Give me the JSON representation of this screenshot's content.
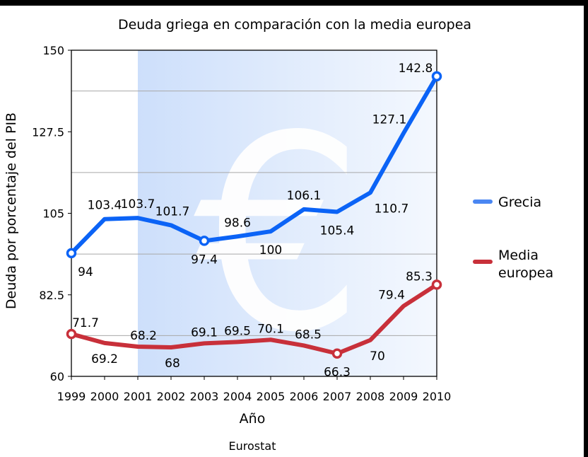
{
  "chart_data": {
    "type": "line",
    "title": "Deuda griega en comparación con la media europea",
    "xlabel": "Año",
    "ylabel": "Deuda por porcentaje del PIB",
    "source": "Eurostat",
    "x": [
      "1999",
      "2000",
      "2001",
      "2002",
      "2003",
      "2004",
      "2005",
      "2006",
      "2007",
      "2008",
      "2009",
      "2010"
    ],
    "ylim": [
      60,
      150
    ],
    "yticks": [
      "60",
      "82.5",
      "105",
      "127.5",
      "150"
    ],
    "series": [
      {
        "name": "Grecia",
        "color": "#0b63f6",
        "legend_color": "#4a86f2",
        "values": [
          94,
          103.4,
          103.7,
          101.7,
          97.4,
          98.6,
          100,
          106.1,
          105.4,
          110.7,
          127.1,
          142.8
        ],
        "labels": [
          "94",
          "103.4",
          "103.7",
          "101.7",
          "97.4",
          "98.6",
          "100",
          "106.1",
          "105.4",
          "110.7",
          "127.1",
          "142.8"
        ]
      },
      {
        "name": "Media europea",
        "name_lines": [
          "Media",
          "europea"
        ],
        "color": "#c8303a",
        "legend_color": "#c8303a",
        "values": [
          71.7,
          69.2,
          68.2,
          68,
          69.1,
          69.5,
          70.1,
          68.5,
          66.3,
          70,
          79.4,
          85.3
        ],
        "labels": [
          "71.7",
          "69.2",
          "68.2",
          "68",
          "69.1",
          "69.5",
          "70.1",
          "68.5",
          "66.3",
          "70",
          "79.4",
          "85.3"
        ]
      }
    ],
    "grid": true,
    "legend": "right",
    "background_symbol": "€"
  }
}
